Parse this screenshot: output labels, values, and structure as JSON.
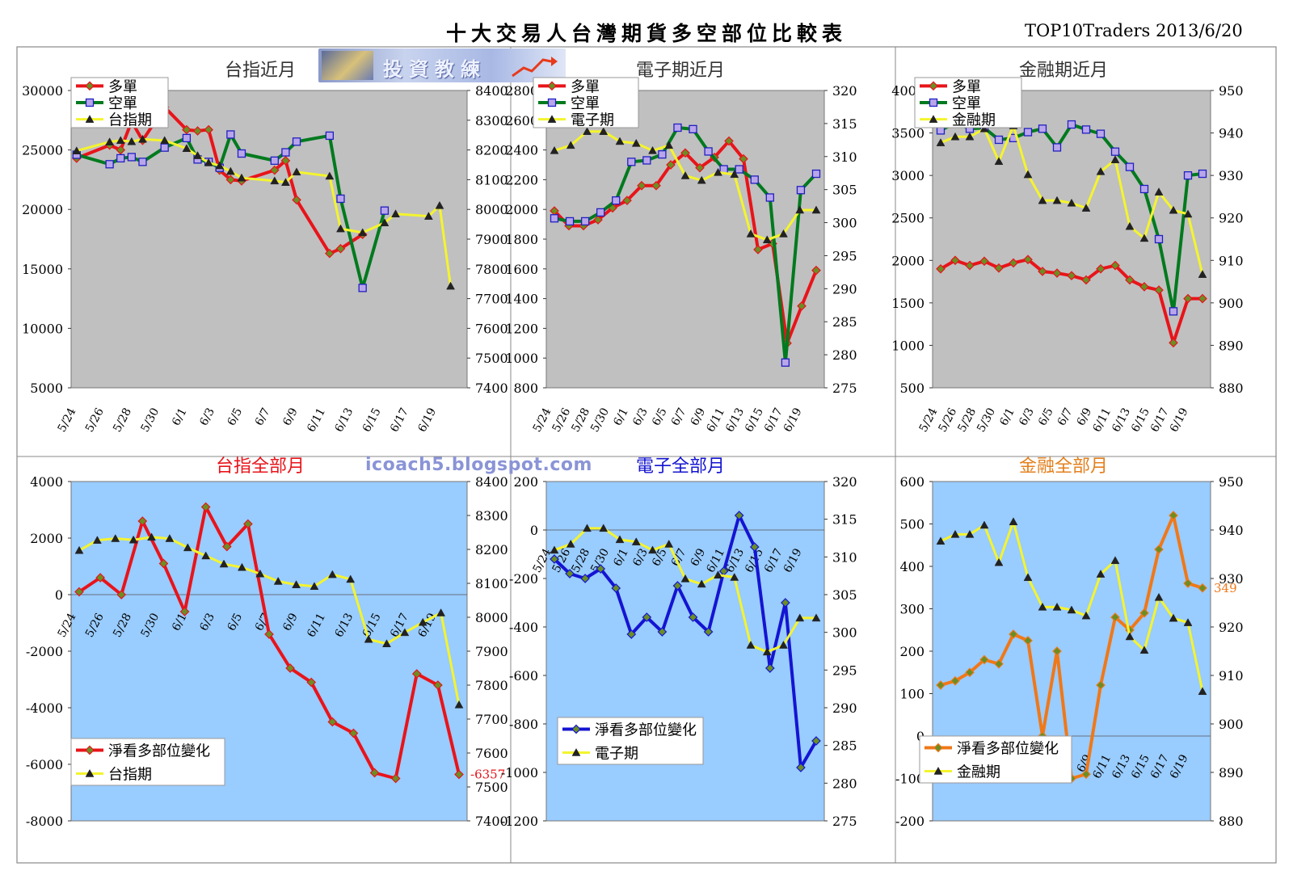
{
  "header": {
    "title": "十大交易人台灣期貨多空部位比較表",
    "date": "TOP10Traders 2013/6/20"
  },
  "logo": {
    "text": "投資教練"
  },
  "watermark": {
    "text": "icoach5.blogspot.com"
  },
  "colors": {
    "long": "#e8141a",
    "short": "#007a1e",
    "short_marker": "#b9a5ea",
    "index": "#f4f42e",
    "gray_bg": "#c0c0c0",
    "blue_bg": "#99ccff",
    "taiex_net": "#e8141a",
    "elec_net": "#1414d2",
    "fin_net": "#f07818",
    "fin_title": "#e4801e"
  },
  "x_axis_ticks": [
    "5/24",
    "5/26",
    "5/28",
    "5/30",
    "6/1",
    "6/3",
    "6/5",
    "6/7",
    "6/9",
    "6/11",
    "6/13",
    "6/15",
    "6/17",
    "6/19"
  ],
  "chart_data": [
    {
      "id": "taiex_near",
      "type": "line",
      "title": "台指近月",
      "background": "gray",
      "legend_position": "top-left",
      "y_left": {
        "min": 5000,
        "max": 30000,
        "step": 5000
      },
      "y_right": {
        "min": 7400,
        "max": 8400,
        "step": 100
      },
      "series": [
        {
          "name": "多單",
          "axis": "left",
          "color_key": "long",
          "marker": "diamond",
          "x": [
            0,
            3,
            4,
            5,
            6,
            8,
            10,
            11,
            12,
            13,
            14,
            15,
            18,
            19,
            20,
            23,
            24,
            26,
            28,
            29,
            32,
            33,
            34
          ],
          "values": [
            24300,
            25400,
            25000,
            27400,
            25800,
            28600,
            26700,
            26600,
            26700,
            23300,
            22500,
            22400,
            23300,
            24100,
            20800,
            16300,
            16700,
            17900,
            null,
            null,
            null,
            null,
            null
          ]
        },
        {
          "name": "空單",
          "axis": "left",
          "color_key": "short",
          "marker": "square",
          "x": [
            0,
            3,
            4,
            5,
            6,
            8,
            10,
            11,
            12,
            13,
            14,
            15,
            18,
            19,
            20,
            23,
            24,
            26,
            28,
            29,
            32,
            33,
            34
          ],
          "values": [
            24600,
            23800,
            24300,
            24400,
            24000,
            25200,
            26000,
            24200,
            24000,
            23500,
            26300,
            24700,
            24100,
            24800,
            25700,
            26200,
            20900,
            13400,
            19900,
            null,
            null,
            null,
            null
          ]
        },
        {
          "name": "台指期",
          "axis": "right",
          "color_key": "index",
          "marker": "triangle",
          "x": [
            0,
            3,
            4,
            5,
            6,
            8,
            10,
            11,
            12,
            13,
            14,
            15,
            18,
            19,
            20,
            23,
            24,
            26,
            28,
            29,
            32,
            33,
            34
          ],
          "values": [
            8197,
            8227,
            8232,
            8228,
            8236,
            8232,
            8205,
            8181,
            8157,
            8147,
            8128,
            8106,
            8096,
            8091,
            8126,
            8112,
            7935,
            7922,
            7955,
            7985,
            7977,
            8013,
            7742
          ]
        }
      ]
    },
    {
      "id": "elec_near",
      "type": "line",
      "title": "電子期近月",
      "background": "gray",
      "legend_position": "top-left",
      "y_left": {
        "min": 800,
        "max": 2800,
        "step": 200
      },
      "y_right": {
        "min": 275,
        "max": 320,
        "step": 5
      },
      "series": [
        {
          "name": "多單",
          "axis": "left",
          "color_key": "long",
          "marker": "diamond",
          "values": [
            1990,
            1890,
            1890,
            1930,
            2010,
            2060,
            2160,
            2160,
            2300,
            2380,
            2280,
            2350,
            2460,
            2340,
            1730,
            1770,
            1100,
            1350,
            1590
          ]
        },
        {
          "name": "空單",
          "axis": "left",
          "color_key": "short",
          "marker": "square",
          "values": [
            1940,
            1920,
            1920,
            1980,
            2060,
            2320,
            2330,
            2370,
            2550,
            2540,
            2390,
            2270,
            2270,
            2200,
            2080,
            970,
            2130,
            2240
          ]
        },
        {
          "name": "電子期",
          "axis": "right",
          "color_key": "index",
          "marker": "triangle",
          "values": [
            310.9,
            311.7,
            313.8,
            313.8,
            312.3,
            312.0,
            310.9,
            311.7,
            307.1,
            306.4,
            307.6,
            307.3,
            298.3,
            297.4,
            298.3,
            301.9,
            301.9
          ]
        }
      ]
    },
    {
      "id": "fin_near",
      "type": "line",
      "title": "金融期近月",
      "background": "gray",
      "legend_position": "top-left",
      "y_left": {
        "min": 500,
        "max": 4000,
        "step": 500
      },
      "y_right": {
        "min": 880,
        "max": 950,
        "step": 10
      },
      "series": [
        {
          "name": "多單",
          "axis": "left",
          "color_key": "long",
          "marker": "diamond",
          "values": [
            1900,
            2000,
            1940,
            1990,
            1910,
            1970,
            2010,
            1870,
            1850,
            1820,
            1770,
            1900,
            1940,
            1770,
            1690,
            1650,
            1030,
            1550,
            1550
          ]
        },
        {
          "name": "空單",
          "axis": "left",
          "color_key": "short",
          "marker": "square",
          "values": [
            3530,
            3620,
            3550,
            3560,
            3420,
            3440,
            3510,
            3550,
            3330,
            3600,
            3540,
            3490,
            3280,
            3100,
            2840,
            2250,
            1400,
            3000,
            3020
          ]
        },
        {
          "name": "金融期",
          "axis": "right",
          "color_key": "index",
          "marker": "triangle",
          "values": [
            937.7,
            939.1,
            939.1,
            941.0,
            933.3,
            941.7,
            930.2,
            924.1,
            924.1,
            923.5,
            922.3,
            930.9,
            933.7,
            918.0,
            915.2,
            926.1,
            921.8,
            920.9,
            906.7
          ]
        }
      ]
    },
    {
      "id": "taiex_all",
      "type": "line",
      "title": "台指全部月",
      "background": "blue",
      "legend_position": "bottom-left",
      "y_left": {
        "min": -8000,
        "max": 4000,
        "step": 2000
      },
      "y_right": {
        "min": 7400,
        "max": 8400,
        "step": 100
      },
      "series": [
        {
          "name": "淨看多部位變化",
          "axis": "left",
          "color_key": "taiex_net",
          "marker": "diamond",
          "values": [
            100,
            600,
            0,
            2600,
            1100,
            -600,
            3100,
            1700,
            2500,
            -1400,
            -2600,
            -3100,
            -4500,
            -4900,
            -6300,
            -6500,
            -2800,
            -3200,
            -6357
          ]
        },
        {
          "name": "台指期",
          "axis": "right",
          "color_key": "index",
          "marker": "triangle",
          "values": [
            8197,
            8227,
            8232,
            8228,
            8236,
            8232,
            8205,
            8181,
            8157,
            8147,
            8128,
            8106,
            8096,
            8091,
            8126,
            8112,
            7935,
            7922,
            7955,
            7985,
            8013,
            7742
          ]
        }
      ],
      "annotations": [
        {
          "text": "-6357",
          "color_key": "taiex_net"
        }
      ]
    },
    {
      "id": "elec_all",
      "type": "line",
      "title": "電子全部月",
      "background": "blue",
      "legend_position": "bottom-left",
      "y_left": {
        "min": -1200,
        "max": 200,
        "step": 200
      },
      "y_right": {
        "min": 275,
        "max": 320,
        "step": 5
      },
      "series": [
        {
          "name": "淨看多部位變化",
          "axis": "left",
          "color_key": "elec_net",
          "marker": "diamond",
          "values": [
            -120,
            -180,
            -200,
            -160,
            -240,
            -430,
            -360,
            -420,
            -230,
            -360,
            -420,
            -170,
            60,
            -70,
            -570,
            -300,
            -980,
            -870
          ]
        },
        {
          "name": "電子期",
          "axis": "right",
          "color_key": "index",
          "marker": "triangle",
          "values": [
            310.9,
            311.7,
            313.8,
            313.8,
            312.3,
            312.0,
            310.9,
            311.7,
            307.1,
            306.4,
            307.6,
            307.3,
            298.3,
            297.4,
            298.3,
            301.9,
            301.9
          ]
        }
      ]
    },
    {
      "id": "fin_all",
      "type": "line",
      "title": "金融全部月",
      "background": "blue",
      "legend_position": "bottom-left",
      "y_left": {
        "min": -200,
        "max": 600,
        "step": 100
      },
      "y_right": {
        "min": 880,
        "max": 950,
        "step": 10
      },
      "series": [
        {
          "name": "淨看多部位變化",
          "axis": "left",
          "color_key": "fin_net",
          "marker": "diamond",
          "values": [
            120,
            130,
            150,
            180,
            170,
            240,
            225,
            0,
            200,
            -100,
            -90,
            120,
            280,
            250,
            290,
            440,
            520,
            360,
            349
          ]
        },
        {
          "name": "金融期",
          "axis": "right",
          "color_key": "index",
          "marker": "triangle",
          "values": [
            937.7,
            939.1,
            939.1,
            941.0,
            933.3,
            941.7,
            930.2,
            924.1,
            924.1,
            923.5,
            922.3,
            930.9,
            933.7,
            918.0,
            915.2,
            926.1,
            921.8,
            920.9,
            906.7
          ]
        }
      ],
      "annotations": [
        {
          "text": "349",
          "color_key": "fin_net"
        }
      ]
    }
  ]
}
